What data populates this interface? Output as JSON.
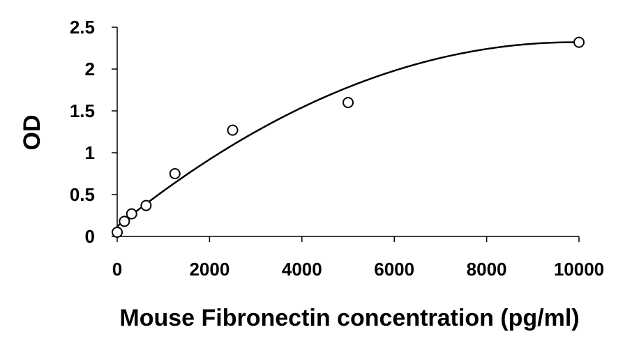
{
  "chart_data": {
    "type": "scatter",
    "title": "",
    "xlabel": "Mouse Fibronectin concentration (pg/ml)",
    "ylabel": "OD",
    "xlim": [
      0,
      10000
    ],
    "ylim": [
      0,
      2.5
    ],
    "xticks": [
      0,
      2000,
      4000,
      6000,
      8000,
      10000
    ],
    "yticks": [
      0,
      0.5,
      1,
      1.5,
      2,
      2.5
    ],
    "xtick_labels": [
      "0",
      "2000",
      "4000",
      "6000",
      "8000",
      "10000"
    ],
    "ytick_labels": [
      "0",
      "0.5",
      "1",
      "1.5",
      "2",
      "2.5"
    ],
    "grid": false,
    "series": [
      {
        "kind": "points",
        "marker": "open-circle",
        "x": [
          0,
          156,
          313,
          625,
          1250,
          2500,
          5000,
          10000
        ],
        "y": [
          0.05,
          0.18,
          0.27,
          0.37,
          0.75,
          1.27,
          1.6,
          2.32
        ]
      },
      {
        "kind": "fit-curve",
        "model": "quadratic",
        "coefficients": [
          0.12,
          0.000445,
          -2.25e-08
        ]
      }
    ]
  }
}
